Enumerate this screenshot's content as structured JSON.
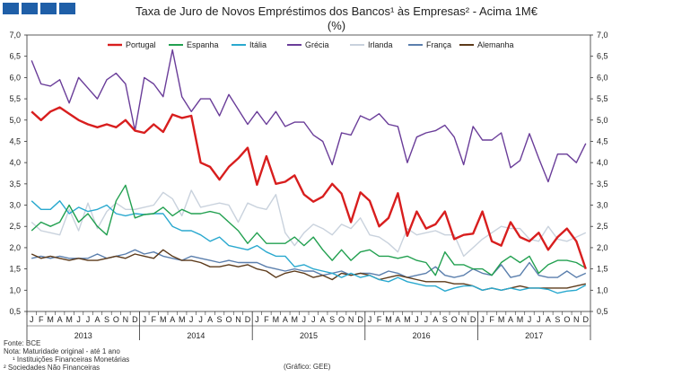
{
  "header": {
    "brand_colors": [
      "#1f5fa8",
      "#1f5fa8",
      "#1f5fa8",
      "#1f5fa8"
    ],
    "title": "Taxa de Juro de Novos Empréstimos dos Bancos¹ às Empresas² - Acima 1M€",
    "subtitle": "(%)"
  },
  "footnotes": {
    "source": "Fonte: BCE",
    "note": "Nota: Maturidade original - até 1 ano",
    "footnote1": "¹ Instituições Financeiras Monetárias",
    "footnote2": "² Sociedades Não Financeiras",
    "credit": "(Gráfico: GEE)"
  },
  "chart_data": {
    "type": "line",
    "ylim": [
      0.5,
      7.0
    ],
    "yticks": [
      "0,5",
      "1,0",
      "1,5",
      "2,0",
      "2,5",
      "3,0",
      "3,5",
      "4,0",
      "4,5",
      "5,0",
      "5,5",
      "6,0",
      "6,5",
      "7,0"
    ],
    "month_labels": [
      "J",
      "F",
      "M",
      "A",
      "M",
      "J",
      "J",
      "A",
      "S",
      "O",
      "N",
      "D"
    ],
    "years": [
      "2013",
      "2014",
      "2015",
      "2016",
      "2017"
    ],
    "legend_position": "top",
    "series": [
      {
        "name": "Portugal",
        "color": "#d81e1e",
        "values": [
          5.2,
          5.0,
          5.2,
          5.3,
          5.15,
          5.0,
          4.9,
          4.83,
          4.9,
          4.83,
          5.0,
          4.75,
          4.7,
          4.9,
          4.72,
          5.13,
          5.05,
          5.1,
          4.0,
          3.9,
          3.6,
          3.9,
          4.1,
          4.35,
          3.48,
          4.15,
          3.5,
          3.55,
          3.7,
          3.25,
          3.08,
          3.2,
          3.5,
          3.27,
          2.6,
          3.3,
          3.1,
          2.5,
          2.7,
          3.28,
          2.28,
          2.85,
          2.45,
          2.55,
          2.85,
          2.2,
          2.3,
          2.33,
          2.85,
          2.15,
          2.05,
          2.6,
          2.25,
          2.15,
          2.35,
          1.95,
          2.25,
          2.45,
          2.15,
          1.5
        ]
      },
      {
        "name": "Espanha",
        "color": "#22a050",
        "values": [
          2.4,
          2.6,
          2.5,
          2.6,
          3.0,
          2.6,
          2.8,
          2.5,
          2.3,
          3.1,
          3.47,
          2.7,
          2.78,
          2.8,
          2.95,
          2.75,
          2.9,
          2.8,
          2.8,
          2.85,
          2.8,
          2.6,
          2.4,
          2.1,
          2.35,
          2.1,
          2.1,
          2.1,
          2.25,
          2.05,
          2.25,
          1.95,
          1.7,
          1.95,
          1.7,
          1.9,
          1.95,
          1.8,
          1.8,
          1.75,
          1.8,
          1.7,
          1.65,
          1.35,
          1.9,
          1.6,
          1.6,
          1.5,
          1.5,
          1.35,
          1.65,
          1.8,
          1.65,
          1.8,
          1.4,
          1.6,
          1.7,
          1.7,
          1.65,
          1.52
        ]
      },
      {
        "name": "Itália",
        "color": "#2aa9cf",
        "values": [
          3.1,
          2.9,
          2.9,
          3.1,
          2.8,
          2.95,
          2.85,
          2.9,
          3.0,
          2.8,
          2.75,
          2.8,
          2.78,
          2.8,
          2.8,
          2.5,
          2.4,
          2.4,
          2.3,
          2.15,
          2.25,
          2.05,
          2.0,
          1.95,
          2.05,
          1.9,
          1.8,
          1.8,
          1.55,
          1.6,
          1.5,
          1.45,
          1.4,
          1.3,
          1.4,
          1.3,
          1.35,
          1.25,
          1.2,
          1.3,
          1.2,
          1.15,
          1.1,
          1.1,
          0.98,
          1.05,
          1.1,
          1.1,
          1.0,
          1.05,
          1.0,
          1.05,
          1.0,
          1.05,
          1.05,
          1.02,
          0.93,
          0.98,
          1.0,
          1.12
        ]
      },
      {
        "name": "Grécia",
        "color": "#6a3d99",
        "values": [
          6.4,
          5.85,
          5.8,
          5.95,
          5.4,
          6.0,
          5.75,
          5.5,
          5.95,
          6.1,
          5.85,
          4.75,
          6.0,
          5.85,
          5.55,
          6.65,
          5.55,
          5.2,
          5.5,
          5.5,
          5.1,
          5.6,
          5.25,
          4.9,
          5.2,
          4.9,
          5.2,
          4.85,
          4.95,
          4.95,
          4.65,
          4.5,
          3.95,
          4.7,
          4.65,
          5.1,
          5.0,
          5.15,
          4.9,
          4.85,
          4.0,
          4.6,
          4.7,
          4.75,
          4.88,
          4.6,
          3.95,
          4.85,
          4.53,
          4.53,
          4.7,
          3.88,
          4.05,
          4.68,
          4.1,
          3.55,
          4.2,
          4.2,
          4.0,
          4.45
        ]
      },
      {
        "name": "Irlanda",
        "color": "#c9d2dd",
        "values": [
          2.6,
          2.4,
          2.35,
          2.3,
          2.9,
          2.4,
          3.05,
          2.45,
          2.85,
          3.05,
          2.9,
          2.9,
          2.95,
          3.0,
          3.3,
          3.15,
          2.75,
          3.35,
          2.95,
          3.0,
          3.05,
          3.0,
          2.6,
          3.05,
          2.95,
          2.9,
          3.25,
          2.35,
          2.05,
          2.35,
          2.55,
          2.45,
          2.3,
          2.55,
          2.45,
          2.7,
          2.3,
          2.25,
          2.1,
          1.9,
          2.45,
          2.3,
          2.35,
          2.4,
          2.3,
          2.3,
          1.8,
          2.0,
          2.2,
          2.35,
          2.5,
          2.45,
          2.45,
          2.2,
          2.15,
          2.5,
          2.2,
          2.15,
          2.25,
          2.35
        ]
      },
      {
        "name": "França",
        "color": "#5b7fad",
        "values": [
          1.75,
          1.8,
          1.75,
          1.8,
          1.75,
          1.75,
          1.75,
          1.85,
          1.75,
          1.8,
          1.85,
          1.95,
          1.85,
          1.9,
          1.8,
          1.75,
          1.7,
          1.8,
          1.75,
          1.7,
          1.65,
          1.7,
          1.65,
          1.65,
          1.65,
          1.55,
          1.5,
          1.45,
          1.5,
          1.45,
          1.45,
          1.35,
          1.4,
          1.45,
          1.35,
          1.4,
          1.4,
          1.35,
          1.45,
          1.4,
          1.3,
          1.35,
          1.4,
          1.55,
          1.35,
          1.3,
          1.35,
          1.5,
          1.4,
          1.35,
          1.6,
          1.3,
          1.35,
          1.65,
          1.35,
          1.3,
          1.3,
          1.45,
          1.3,
          1.4
        ]
      },
      {
        "name": "Alemanha",
        "color": "#5c3a1a",
        "values": [
          1.85,
          1.75,
          1.8,
          1.75,
          1.7,
          1.75,
          1.7,
          1.7,
          1.75,
          1.8,
          1.75,
          1.85,
          1.8,
          1.75,
          1.95,
          1.8,
          1.7,
          1.7,
          1.65,
          1.55,
          1.55,
          1.6,
          1.55,
          1.6,
          1.5,
          1.45,
          1.3,
          1.4,
          1.45,
          1.4,
          1.3,
          1.35,
          1.25,
          1.4,
          1.35,
          1.4,
          1.35,
          1.25,
          1.3,
          1.35,
          1.3,
          1.25,
          1.2,
          1.2,
          1.2,
          1.15,
          1.15,
          1.1,
          1.0,
          1.05,
          1.0,
          1.05,
          1.1,
          1.05,
          1.05,
          1.05,
          1.05,
          1.05,
          1.1,
          1.15
        ]
      }
    ]
  }
}
